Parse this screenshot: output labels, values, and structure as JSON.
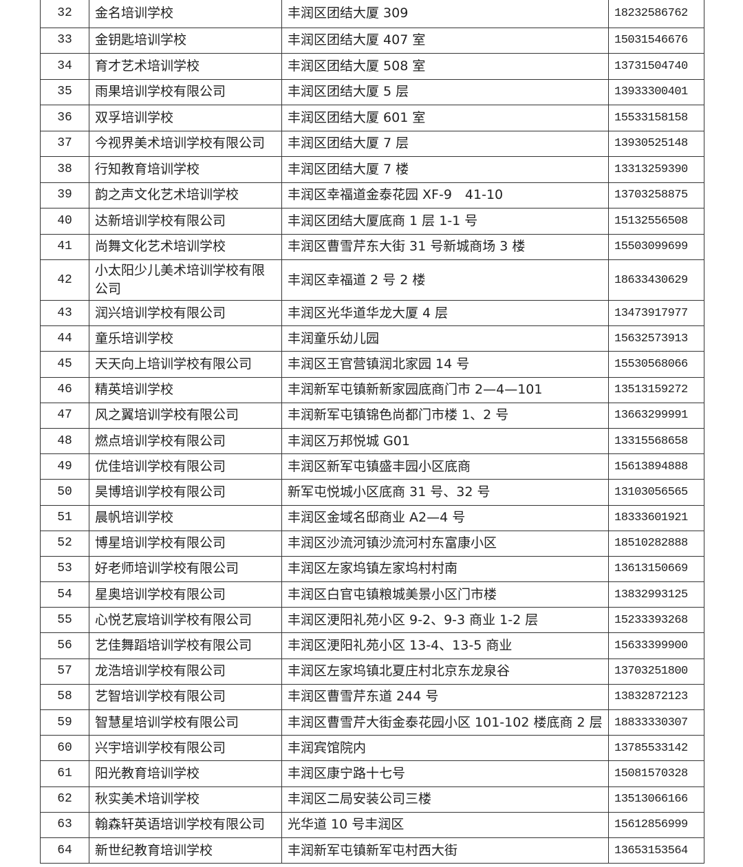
{
  "table": {
    "rows": [
      {
        "no": "32",
        "name": "金名培训学校",
        "address": "丰润区团结大厦 309",
        "phone": "18232586762"
      },
      {
        "no": "33",
        "name": "金钥匙培训学校",
        "address": "丰润区团结大厦 407 室",
        "phone": "15031546676"
      },
      {
        "no": "34",
        "name": "育才艺术培训学校",
        "address": "丰润区团结大厦 508 室",
        "phone": "13731504740"
      },
      {
        "no": "35",
        "name": "雨果培训学校有限公司",
        "address": "丰润区团结大厦 5 层",
        "phone": "13933300401"
      },
      {
        "no": "36",
        "name": "双孚培训学校",
        "address": "丰润区团结大厦 601 室",
        "phone": "15533158158"
      },
      {
        "no": "37",
        "name": "今视界美术培训学校有限公司",
        "address": "丰润区团结大厦 7 层",
        "phone": "13930525148"
      },
      {
        "no": "38",
        "name": "行知教育培训学校",
        "address": "丰润区团结大厦 7 楼",
        "phone": "13313259390"
      },
      {
        "no": "39",
        "name": "韵之声文化艺术培训学校",
        "address": "丰润区幸福道金泰花园 XF-9　41-10",
        "phone": "13703258875"
      },
      {
        "no": "40",
        "name": "达新培训学校有限公司",
        "address": "丰润区团结大厦底商 1 层 1-1 号",
        "phone": "15132556508"
      },
      {
        "no": "41",
        "name": "尚舞文化艺术培训学校",
        "address": "丰润区曹雪芹东大街 31 号新城商场 3 楼",
        "phone": "15503099699"
      },
      {
        "no": "42",
        "name": "小太阳少儿美术培训学校有限公司",
        "address": "丰润区幸福道 2 号 2 楼",
        "phone": "18633430629"
      },
      {
        "no": "43",
        "name": "润兴培训学校有限公司",
        "address": "丰润区光华道华龙大厦 4 层",
        "phone": "13473917977"
      },
      {
        "no": "44",
        "name": "童乐培训学校",
        "address": "丰润童乐幼儿园",
        "phone": "15632573913"
      },
      {
        "no": "45",
        "name": "天天向上培训学校有限公司",
        "address": "丰润区王官营镇润北家园 14 号",
        "phone": "15530568066"
      },
      {
        "no": "46",
        "name": "精英培训学校",
        "address": "丰润新军屯镇新新家园底商门市 2—4—101",
        "phone": "13513159272"
      },
      {
        "no": "47",
        "name": "风之翼培训学校有限公司",
        "address": "丰润新军屯镇锦色尚都门市楼 1、2 号",
        "phone": "13663299991"
      },
      {
        "no": "48",
        "name": "燃点培训学校有限公司",
        "address": "丰润区万邦悦城 G01",
        "phone": "13315568658"
      },
      {
        "no": "49",
        "name": "优佳培训学校有限公司",
        "address": "丰润区新军屯镇盛丰园小区底商",
        "phone": "15613894888"
      },
      {
        "no": "50",
        "name": "昊博培训学校有限公司",
        "address": "新军屯悦城小区底商 31 号、32 号",
        "phone": "13103056565"
      },
      {
        "no": "51",
        "name": "晨帆培训学校",
        "address": "丰润区金域名邸商业 A2—4 号",
        "phone": "18333601921"
      },
      {
        "no": "52",
        "name": "博星培训学校有限公司",
        "address": "丰润区沙流河镇沙流河村东富康小区",
        "phone": "18510282888"
      },
      {
        "no": "53",
        "name": "好老师培训学校有限公司",
        "address": "丰润区左家坞镇左家坞村村南",
        "phone": "13613150669"
      },
      {
        "no": "54",
        "name": "星奥培训学校有限公司",
        "address": "丰润区白官屯镇粮城美景小区门市楼",
        "phone": "13832993125"
      },
      {
        "no": "55",
        "name": "心悦艺宸培训学校有限公司",
        "address": "丰润区浭阳礼苑小区 9-2、9-3 商业 1-2 层",
        "phone": "15233393268"
      },
      {
        "no": "56",
        "name": "艺佳舞蹈培训学校有限公司",
        "address": "丰润区浭阳礼苑小区 13-4、13-5 商业",
        "phone": "15633399900"
      },
      {
        "no": "57",
        "name": "龙浩培训学校有限公司",
        "address": "丰润区左家坞镇北夏庄村北京东龙泉谷",
        "phone": "13703251800"
      },
      {
        "no": "58",
        "name": "艺智培训学校有限公司",
        "address": "丰润区曹雪芹东道 244 号",
        "phone": "13832872123"
      },
      {
        "no": "59",
        "name": "智慧星培训学校有限公司",
        "address": "丰润区曹雪芹大街金泰花园小区 101-102 楼底商 2 层",
        "phone": "18833330307"
      },
      {
        "no": "60",
        "name": "兴宇培训学校有限公司",
        "address": "丰润宾馆院内",
        "phone": "13785533142"
      },
      {
        "no": "61",
        "name": "阳光教育培训学校",
        "address": "丰润区康宁路十七号",
        "phone": "15081570328"
      },
      {
        "no": "62",
        "name": "秋实美术培训学校",
        "address": "丰润区二局安装公司三楼",
        "phone": "13513066166"
      },
      {
        "no": "63",
        "name": "翰森轩英语培训学校有限公司",
        "address": "光华道 10 号丰润区",
        "phone": "15612856999"
      },
      {
        "no": "64",
        "name": "新世纪教育培训学校",
        "address": "丰润新军屯镇新军屯村西大街",
        "phone": "13653153564"
      }
    ]
  }
}
